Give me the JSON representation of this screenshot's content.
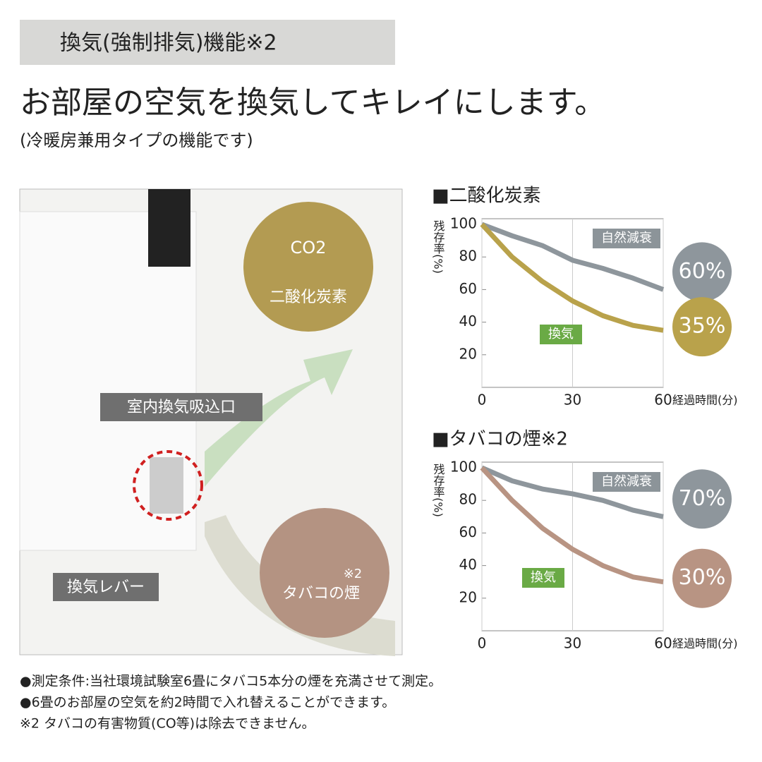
{
  "header": {
    "tag": "換気(強制排気)機能※2",
    "title": "お部屋の空気を換気してキレイにします。",
    "subtitle": "(冷暖房兼用タイプの機能です)"
  },
  "illustration": {
    "co2_bubble": "CO2",
    "co2_label": "二酸化炭素",
    "smoke_note": "※2",
    "smoke_label": "タバコの煙",
    "intake_label": "室内換気吸込口",
    "lever_label": "換気レバー"
  },
  "chart_data": [
    {
      "type": "line",
      "title": "■二酸化炭素",
      "y_label": "残存率(%)",
      "x_label": "経過時間(分)",
      "x": [
        0,
        10,
        20,
        30,
        40,
        50,
        60
      ],
      "xlim": [
        0,
        60
      ],
      "xticks": [
        0,
        30,
        60
      ],
      "ylim": [
        0,
        100
      ],
      "yticks": [
        20,
        40,
        60,
        80,
        100
      ],
      "series": [
        {
          "name": "自然減衰",
          "color": "#8e969c",
          "values": [
            100,
            93,
            87,
            78,
            73,
            67,
            60
          ],
          "end_label": "60%"
        },
        {
          "name": "換気",
          "color": "#b9a24b",
          "values": [
            100,
            80,
            65,
            53,
            44,
            38,
            35
          ],
          "end_label": "35%"
        }
      ]
    },
    {
      "type": "line",
      "title": "■タバコの煙※2",
      "y_label": "残存率(%)",
      "x_label": "経過時間(分)",
      "x": [
        0,
        10,
        20,
        30,
        40,
        50,
        60
      ],
      "xlim": [
        0,
        60
      ],
      "xticks": [
        0,
        30,
        60
      ],
      "ylim": [
        0,
        100
      ],
      "yticks": [
        20,
        40,
        60,
        80,
        100
      ],
      "series": [
        {
          "name": "自然減衰",
          "color": "#8e969c",
          "values": [
            100,
            92,
            87,
            84,
            80,
            74,
            70
          ],
          "end_label": "70%"
        },
        {
          "name": "換気",
          "color": "#b89483",
          "values": [
            100,
            80,
            63,
            50,
            40,
            33,
            30
          ],
          "end_label": "30%"
        }
      ]
    }
  ],
  "notes": [
    "●測定条件:当社環境試験室6畳にタバコ5本分の煙を充満させて測定。",
    "●6畳のお部屋の空気を約2時間で入れ替えることができます。",
    "※2 タバコの有害物質(CO等)は除去できません。"
  ]
}
